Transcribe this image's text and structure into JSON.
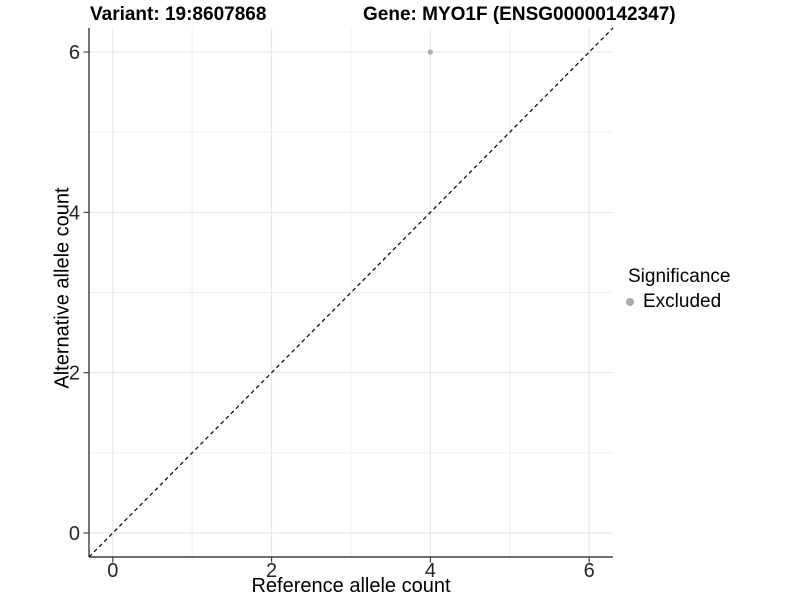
{
  "chart_data": {
    "type": "scatter",
    "title_left": "Variant: 19:8607868",
    "title_right": "Gene: MYO1F (ENSG00000142347)",
    "xlabel": "Reference allele count",
    "ylabel": "Alternative allele count",
    "xlim": [
      -0.3,
      6.3
    ],
    "ylim": [
      -0.3,
      6.3
    ],
    "x_ticks": [
      0,
      2,
      4,
      6
    ],
    "y_ticks": [
      0,
      2,
      4,
      6
    ],
    "x_minor_grid": [
      1,
      3,
      5
    ],
    "y_minor_grid": [
      1,
      3,
      5
    ],
    "grid": true,
    "legend_position": "right",
    "series": [
      {
        "name": "Excluded",
        "color": "#b1b1b1",
        "points": [
          {
            "x": 4,
            "y": 6
          }
        ]
      }
    ],
    "reference_line": {
      "slope": 1,
      "intercept": 0,
      "linetype": "dashed",
      "color": "#000000"
    },
    "legend": {
      "title": "Significance",
      "entries": [
        {
          "label": "Excluded",
          "color": "#a9a9a9"
        }
      ]
    }
  },
  "colors": {
    "background": "#ffffff",
    "grid_major": "#e5e5e5",
    "grid_minor": "#f0f0f0",
    "axis_line": "#1a1a1a",
    "tick_mark": "#333333",
    "tick_label": "#262626",
    "title_text": "#000000"
  }
}
